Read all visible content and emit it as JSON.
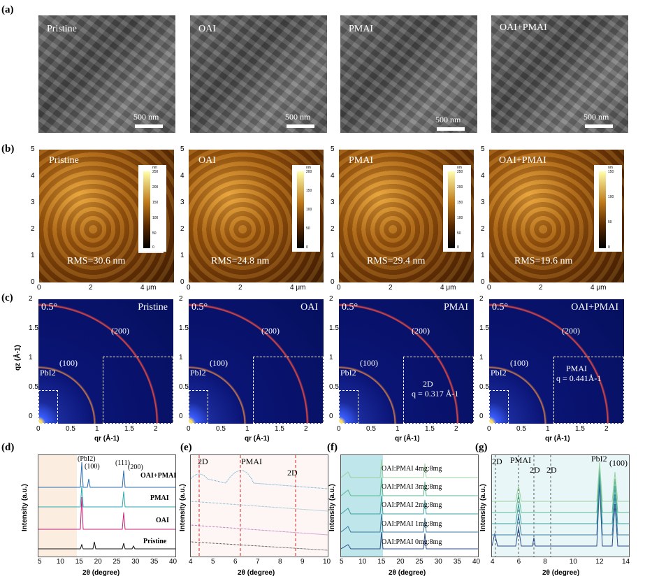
{
  "panels": {
    "a": "(a)",
    "b": "(b)",
    "c": "(c)",
    "d": "(d)",
    "e": "(e)",
    "f": "(f)",
    "g": "(g)"
  },
  "samples": [
    "Pristine",
    "OAI",
    "PMAI",
    "OAI+PMAI"
  ],
  "sem": {
    "scale": "500 nm"
  },
  "afm": {
    "rms": [
      "RMS=30.6 nm",
      "RMS=24.8 nm",
      "RMS=29.4 nm",
      "RMS=19.6 nm"
    ],
    "colorbar_unit": "nm",
    "colorbar_ticks": [
      [
        "250",
        "200",
        "150",
        "100",
        "50",
        "0"
      ],
      [
        "200",
        "150",
        "100",
        "50",
        "0"
      ],
      [
        "250",
        "200",
        "150",
        "100",
        "50",
        "0"
      ],
      [
        "150",
        "100",
        "50",
        "0"
      ]
    ],
    "y_ticks": [
      "5",
      "4",
      "3",
      "2",
      "1",
      "0"
    ],
    "x_ticks": [
      "0",
      "2",
      "4 μm"
    ]
  },
  "giwaxs": {
    "angle": "0.5°",
    "peak_200": "(200)",
    "peak_100": "(100)",
    "pbi2": "PbI2",
    "ylabel": "qz (Å-1)",
    "xlabel": "qr (Å-1)",
    "y_ticks": [
      "2",
      "1.5",
      "1",
      "0.5",
      "0"
    ],
    "x_ticks": [
      "0",
      "0.5",
      "1",
      "1.5",
      "2"
    ],
    "pmai_note": [
      "2D",
      "q = 0.317 Å-1"
    ],
    "oaipmai_note": [
      "PMAI",
      "q = 0.441Å-1"
    ]
  },
  "xrd_d": {
    "labels": [
      "(PbI2)",
      "(100)",
      "(111)",
      "(200)"
    ],
    "series": [
      "OAI+PMAI",
      "PMAI",
      "OAI",
      "Pristine"
    ],
    "ylabel": "Intensity (a.u.)",
    "xlabel": "2θ (degree)",
    "x_ticks": [
      "5",
      "10",
      "15",
      "20",
      "25",
      "30",
      "35",
      "40"
    ]
  },
  "xrd_e": {
    "labels": [
      "2D",
      "PMAI",
      "2D"
    ],
    "ylabel": "Intensity (a.u.)",
    "xlabel": "2θ (degree)",
    "x_ticks": [
      "4",
      "5",
      "6",
      "7",
      "8",
      "9",
      "10"
    ]
  },
  "xrd_f": {
    "series": [
      "OAI:PMAI 4mg:8mg",
      "OAI:PMAI 3mg:8mg",
      "OAI:PMAI 2mg:8mg",
      "OAI:PMAI 1mg:8mg",
      "OAI:PMAI 0mg:8mg"
    ],
    "ylabel": "Intensity (a.u.)",
    "xlabel": "2θ (degree)",
    "x_ticks": [
      "5",
      "10",
      "15",
      "20",
      "25",
      "30",
      "35",
      "40"
    ]
  },
  "xrd_g": {
    "labels": [
      "2D",
      "PMAI",
      "2D",
      "2D",
      "PbI2",
      "(100)"
    ],
    "ylabel": "Intensity (a.u.)",
    "xlabel": "2θ (degree)",
    "x_ticks": [
      "4",
      "6",
      "8",
      "10",
      "12",
      "14"
    ]
  }
}
